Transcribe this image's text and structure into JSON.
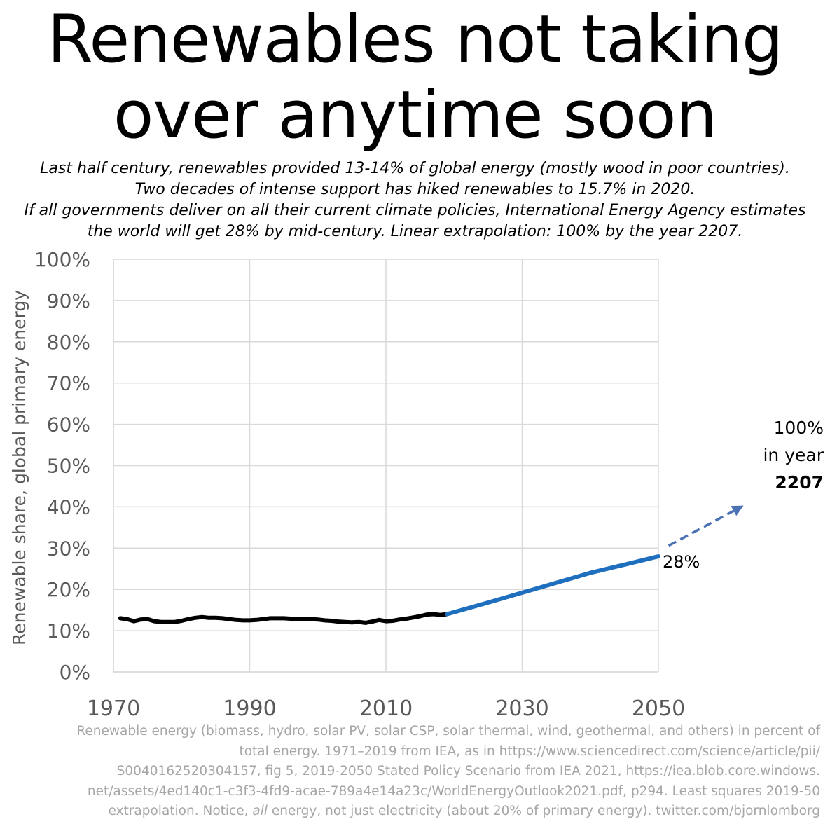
{
  "title": {
    "line1": "Renewables not taking",
    "line2": "over anytime soon"
  },
  "subtitle": [
    "Last half century, renewables provided 13-14% of global energy (mostly wood in poor countries).",
    "Two decades of intense support has hiked renewables to 15.7% in 2020.",
    "If all governments deliver on all their current climate policies, International Energy Agency estimates",
    "the world will get 28% by mid-century. Linear extrapolation: 100% by the year 2207."
  ],
  "chart_data": {
    "type": "line",
    "ylabel": "Renewable share, global primary energy",
    "xlabel": "",
    "xlim": [
      1970,
      2050
    ],
    "ylim": [
      0,
      100
    ],
    "x_ticks": [
      "1970",
      "1990",
      "2010",
      "2030",
      "2050"
    ],
    "x_tick_values": [
      1970,
      1990,
      2010,
      2030,
      2050
    ],
    "y_ticks": [
      "0%",
      "10%",
      "20%",
      "30%",
      "40%",
      "50%",
      "60%",
      "70%",
      "80%",
      "90%",
      "100%"
    ],
    "y_tick_values": [
      0,
      10,
      20,
      30,
      40,
      50,
      60,
      70,
      80,
      90,
      100
    ],
    "grid": true,
    "series": [
      {
        "color": "#000000",
        "points": [
          [
            1971,
            13.0
          ],
          [
            1972,
            12.8
          ],
          [
            1973,
            12.3
          ],
          [
            1974,
            12.7
          ],
          [
            1975,
            12.8
          ],
          [
            1976,
            12.3
          ],
          [
            1977,
            12.1
          ],
          [
            1978,
            12.1
          ],
          [
            1979,
            12.1
          ],
          [
            1980,
            12.4
          ],
          [
            1981,
            12.8
          ],
          [
            1982,
            13.1
          ],
          [
            1983,
            13.3
          ],
          [
            1984,
            13.1
          ],
          [
            1985,
            13.1
          ],
          [
            1986,
            13.0
          ],
          [
            1987,
            12.8
          ],
          [
            1988,
            12.6
          ],
          [
            1989,
            12.5
          ],
          [
            1990,
            12.5
          ],
          [
            1991,
            12.6
          ],
          [
            1992,
            12.8
          ],
          [
            1993,
            13.0
          ],
          [
            1994,
            13.0
          ],
          [
            1995,
            13.0
          ],
          [
            1996,
            12.9
          ],
          [
            1997,
            12.8
          ],
          [
            1998,
            12.9
          ],
          [
            1999,
            12.8
          ],
          [
            2000,
            12.7
          ],
          [
            2001,
            12.5
          ],
          [
            2002,
            12.4
          ],
          [
            2003,
            12.2
          ],
          [
            2004,
            12.1
          ],
          [
            2005,
            12.0
          ],
          [
            2006,
            12.1
          ],
          [
            2007,
            11.9
          ],
          [
            2008,
            12.2
          ],
          [
            2009,
            12.6
          ],
          [
            2010,
            12.3
          ],
          [
            2011,
            12.4
          ],
          [
            2012,
            12.7
          ],
          [
            2013,
            12.9
          ],
          [
            2014,
            13.2
          ],
          [
            2015,
            13.5
          ],
          [
            2016,
            13.9
          ],
          [
            2017,
            14.0
          ],
          [
            2018,
            13.8
          ],
          [
            2019,
            14.0
          ]
        ]
      },
      {
        "color": "#1f6fbf",
        "points": [
          [
            2019,
            14.0
          ],
          [
            2025,
            16.8
          ],
          [
            2030,
            19.2
          ],
          [
            2035,
            21.6
          ],
          [
            2040,
            24.0
          ],
          [
            2045,
            26.0
          ],
          [
            2050,
            28.0
          ]
        ]
      }
    ],
    "extrapolation": {
      "color": "#4a72b5",
      "from": [
        2051.5,
        30.6
      ],
      "to": [
        2062.5,
        40.3
      ]
    },
    "annotations": [
      {
        "text": "28%",
        "x": 2050,
        "y": 28
      },
      {
        "lines": [
          "100%",
          "in year",
          "2207"
        ],
        "bold_line": 2
      }
    ]
  },
  "footnote": [
    "Renewable energy (biomass, hydro, solar PV, solar CSP, solar thermal, wind, geothermal, and others) in percent of",
    "total energy. 1971–2019 from IEA, as in https://www.sciencedirect.com/science/article/pii/",
    "S0040162520304157, fig 5, 2019-2050 Stated Policy Scenario from IEA 2021, https://iea.blob.core.windows.",
    "net/assets/4ed140c1-c3f3-4fd9-acae-789a4e14a23c/WorldEnergyOutlook2021.pdf, p294. Least squares 2019-50"
  ],
  "footnote_last": {
    "before": "extrapolation. Notice, ",
    "italic": "all",
    "after": " energy, not just electricity (about 20% of primary energy). twitter.com/bjornlomborg"
  }
}
